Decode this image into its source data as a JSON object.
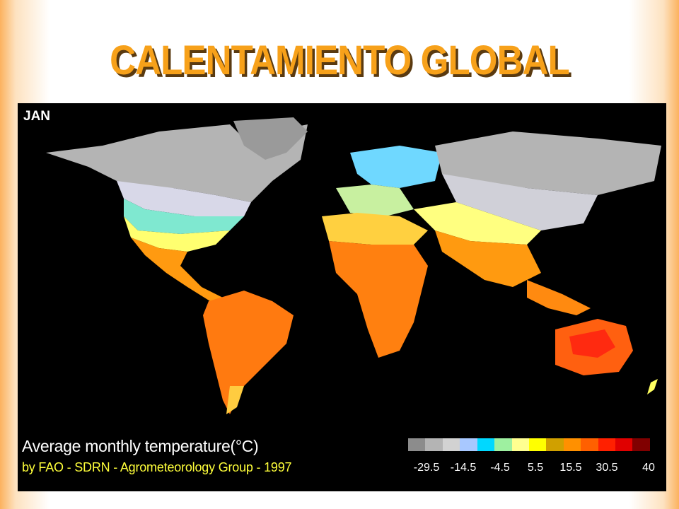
{
  "slide": {
    "title": "CALENTAMIENTO GLOBAL"
  },
  "map": {
    "month": "JAN",
    "legend_title": "Average monthly temperature(°C)",
    "credit": "by FAO - SDRN - Agrometeorology Group - 1997",
    "scale_colors": [
      "#8c8c8c",
      "#b4b4b4",
      "#d2d2d2",
      "#a8c8ff",
      "#00d8ff",
      "#9ef0a0",
      "#ffff90",
      "#ffff00",
      "#d0a000",
      "#ff9000",
      "#ff6000",
      "#ff2000",
      "#e00000",
      "#800000"
    ],
    "scale_labels": [
      "-29.5",
      "-14.5",
      "-4.5",
      "5.5",
      "15.5",
      "30.5",
      "40"
    ]
  }
}
